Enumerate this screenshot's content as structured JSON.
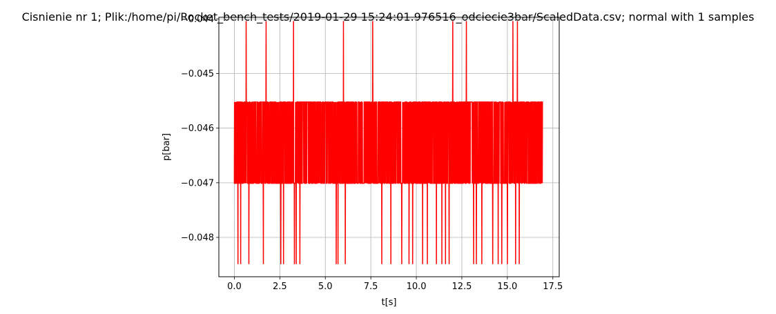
{
  "chart_data": {
    "type": "line",
    "title": "Cisnienie nr 1; Plik:/home/pi/Rocket_bench_tests/2019-01-29 15:24:01.976516_odciecie3bar/ScaledData.csv; normal with 1 samples",
    "xlabel": "t[s]",
    "ylabel": "p[bar]",
    "xlim": [
      -0.85,
      17.85
    ],
    "ylim": [
      -0.04872,
      -0.04397
    ],
    "x_ticks": [
      0.0,
      2.5,
      5.0,
      7.5,
      10.0,
      12.5,
      15.0,
      17.5
    ],
    "x_tick_labels": [
      "0.0",
      "2.5",
      "5.0",
      "7.5",
      "10.0",
      "12.5",
      "15.0",
      "17.5"
    ],
    "y_ticks": [
      -0.048,
      -0.047,
      -0.046,
      -0.045,
      -0.044
    ],
    "y_tick_labels": [
      "−0.048",
      "−0.047",
      "−0.046",
      "−0.045",
      "−0.044"
    ],
    "grid": true,
    "legend": "none",
    "series": [
      {
        "color": "#ff0000",
        "x_start": 0.0,
        "x_end": 16.95,
        "sample_count": 1700,
        "levels": [
          -0.04552,
          -0.04701
        ],
        "high_spikes_value": -0.04404,
        "high_spikes_at": [
          0.65,
          1.75,
          3.25,
          6.0,
          7.6,
          12.0,
          12.75,
          15.3,
          15.55
        ],
        "low_spikes_value": -0.04849,
        "low_spikes_at": [
          0.2,
          0.35,
          0.8,
          1.6,
          2.55,
          2.7,
          3.3,
          3.4,
          3.6,
          5.6,
          5.7,
          6.1,
          8.1,
          8.6,
          9.2,
          9.6,
          9.8,
          10.35,
          10.6,
          11.1,
          11.4,
          11.6,
          11.8,
          13.15,
          13.3,
          13.6,
          14.2,
          14.5,
          14.7,
          15.0,
          15.45,
          15.65
        ]
      }
    ]
  }
}
